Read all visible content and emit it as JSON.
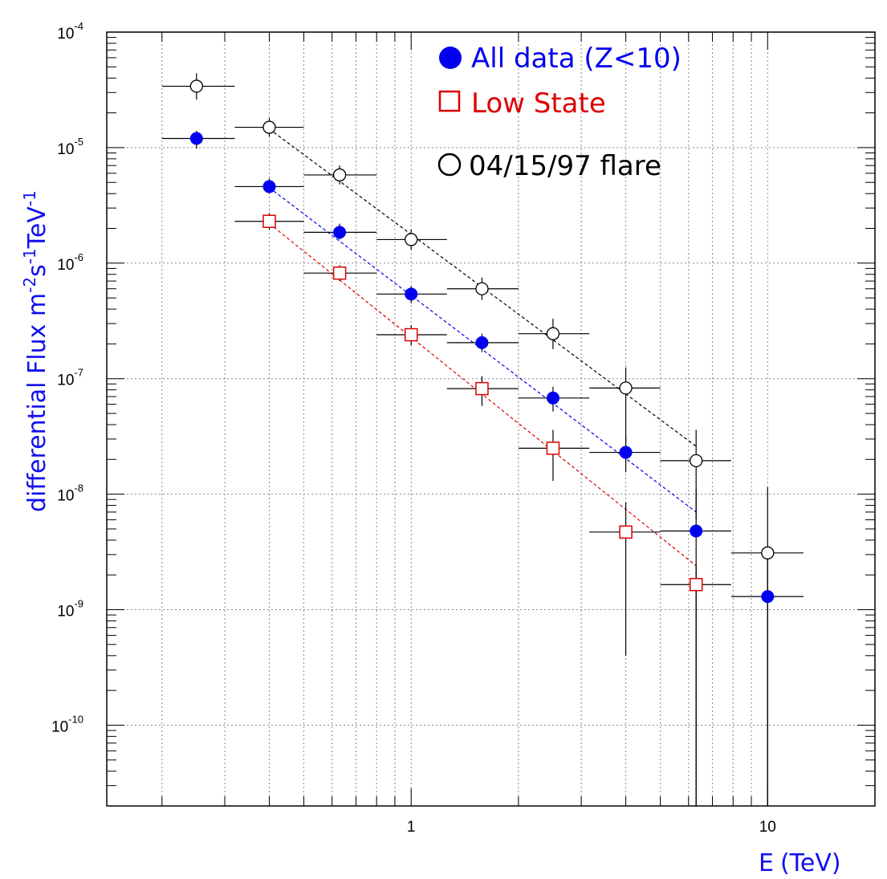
{
  "chart_data": {
    "type": "scatter",
    "x_scale": "log",
    "y_scale": "log",
    "xlim": [
      0.14,
      20
    ],
    "ylim": [
      2e-11,
      0.0001
    ],
    "grid": true,
    "legend_position": "top-right",
    "xlabel_main": "E",
    "xlabel_unit": "(TeV)",
    "ylabel_main": "differential Flux m",
    "ylabel_s": "s",
    "ylabel_tev": "TeV",
    "ylabel_exp1": "-2",
    "ylabel_exp2": "-1",
    "ylabel_exp3": "-1",
    "x_ticks": [
      {
        "value": 1,
        "label": "1"
      },
      {
        "value": 10,
        "label": "10"
      }
    ],
    "y_ticks": [
      {
        "value": 0.0001,
        "base": "10",
        "exp": "-4"
      },
      {
        "value": 1e-05,
        "base": "10",
        "exp": "-5"
      },
      {
        "value": 1e-06,
        "base": "10",
        "exp": "-6"
      },
      {
        "value": 1e-07,
        "base": "10",
        "exp": "-7"
      },
      {
        "value": 1e-08,
        "base": "10",
        "exp": "-8"
      },
      {
        "value": 1e-09,
        "base": "10",
        "exp": "-9"
      },
      {
        "value": 1e-10,
        "base": "10",
        "exp": "-10"
      }
    ],
    "series": [
      {
        "name": "04/15/97 flare",
        "marker": "open-circle",
        "color": "#000000",
        "points": [
          {
            "x": 0.25,
            "y": 3.4e-05,
            "xlo": 0.2,
            "xhi": 0.32,
            "ylo": 2.6e-05,
            "yhi": 4.4e-05
          },
          {
            "x": 0.4,
            "y": 1.5e-05,
            "xlo": 0.32,
            "xhi": 0.5,
            "ylo": 1.25e-05,
            "yhi": 1.8e-05
          },
          {
            "x": 0.63,
            "y": 5.8e-06,
            "xlo": 0.5,
            "xhi": 0.8,
            "ylo": 4.8e-06,
            "yhi": 7e-06
          },
          {
            "x": 1.0,
            "y": 1.6e-06,
            "xlo": 0.8,
            "xhi": 1.26,
            "ylo": 1.3e-06,
            "yhi": 1.95e-06
          },
          {
            "x": 1.58,
            "y": 6e-07,
            "xlo": 1.26,
            "xhi": 2.0,
            "ylo": 4.8e-07,
            "yhi": 7.5e-07
          },
          {
            "x": 2.5,
            "y": 2.45e-07,
            "xlo": 2.0,
            "xhi": 3.16,
            "ylo": 1.8e-07,
            "yhi": 3.3e-07
          },
          {
            "x": 4.0,
            "y": 8.3e-08,
            "xlo": 3.16,
            "xhi": 5.0,
            "ylo": 2.8e-08,
            "yhi": 1.25e-07
          },
          {
            "x": 6.3,
            "y": 1.95e-08,
            "xlo": 5.0,
            "xhi": 7.9,
            "ylo": 6e-09,
            "yhi": 3.6e-08
          },
          {
            "x": 10.0,
            "y": 3.1e-09,
            "xlo": 7.9,
            "xhi": 12.6,
            "ylo": 2e-11,
            "yhi": 1.15e-08
          }
        ],
        "fit": {
          "x": [
            0.4,
            6.3
          ],
          "y": [
            1.45e-05,
            2.6e-08
          ]
        }
      },
      {
        "name": "All data (Z<10)",
        "marker": "filled-circle",
        "color": "#0000ee",
        "points": [
          {
            "x": 0.25,
            "y": 1.2e-05,
            "xlo": 0.2,
            "xhi": 0.32,
            "ylo": 9.8e-06,
            "yhi": 1.4e-05
          },
          {
            "x": 0.4,
            "y": 4.6e-06,
            "xlo": 0.32,
            "xhi": 0.5,
            "ylo": 4e-06,
            "yhi": 5.4e-06
          },
          {
            "x": 0.63,
            "y": 1.85e-06,
            "xlo": 0.5,
            "xhi": 0.8,
            "ylo": 1.6e-06,
            "yhi": 2.2e-06
          },
          {
            "x": 1.0,
            "y": 5.4e-07,
            "xlo": 0.8,
            "xhi": 1.26,
            "ylo": 4.5e-07,
            "yhi": 6.3e-07
          },
          {
            "x": 1.58,
            "y": 2.05e-07,
            "xlo": 1.26,
            "xhi": 2.0,
            "ylo": 1.7e-07,
            "yhi": 2.45e-07
          },
          {
            "x": 2.5,
            "y": 6.8e-08,
            "xlo": 2.0,
            "xhi": 3.16,
            "ylo": 5.2e-08,
            "yhi": 8.5e-08
          },
          {
            "x": 4.0,
            "y": 2.3e-08,
            "xlo": 3.16,
            "xhi": 5.0,
            "ylo": 1.55e-08,
            "yhi": 3.2e-08
          },
          {
            "x": 6.3,
            "y": 4.8e-09,
            "xlo": 5.0,
            "xhi": 7.9,
            "ylo": 2e-11,
            "yhi": 1.1e-08
          },
          {
            "x": 10.0,
            "y": 1.3e-09,
            "xlo": 7.9,
            "xhi": 12.6,
            "ylo": 2e-11,
            "yhi": 3.2e-09
          }
        ],
        "fit": {
          "x": [
            0.4,
            6.3
          ],
          "y": [
            4.5e-06,
            7e-09
          ]
        }
      },
      {
        "name": "Low State",
        "marker": "open-square",
        "color": "#dd0000",
        "points": [
          {
            "x": 0.4,
            "y": 2.3e-06,
            "xlo": 0.32,
            "xhi": 0.5,
            "ylo": 1.95e-06,
            "yhi": 2.7e-06
          },
          {
            "x": 0.63,
            "y": 8.2e-07,
            "xlo": 0.5,
            "xhi": 0.8,
            "ylo": 7e-07,
            "yhi": 9.6e-07
          },
          {
            "x": 1.0,
            "y": 2.4e-07,
            "xlo": 0.8,
            "xhi": 1.26,
            "ylo": 1.95e-07,
            "yhi": 2.9e-07
          },
          {
            "x": 1.58,
            "y": 8.2e-08,
            "xlo": 1.26,
            "xhi": 2.0,
            "ylo": 5.8e-08,
            "yhi": 1.05e-07
          },
          {
            "x": 2.5,
            "y": 2.5e-08,
            "xlo": 2.0,
            "xhi": 3.16,
            "ylo": 1.3e-08,
            "yhi": 3.6e-08
          },
          {
            "x": 4.0,
            "y": 4.7e-09,
            "xlo": 3.16,
            "xhi": 5.0,
            "ylo": 4e-10,
            "yhi": 8.5e-09
          },
          {
            "x": 6.3,
            "y": 1.65e-09,
            "xlo": 5.0,
            "xhi": 7.9,
            "ylo": 2e-11,
            "yhi": 2.4e-09
          }
        ],
        "fit": {
          "x": [
            0.4,
            6.3
          ],
          "y": [
            2.2e-06,
            2.4e-09
          ]
        }
      }
    ],
    "legend": [
      {
        "label": "All data (Z<10)",
        "color": "#0000ee",
        "marker": "filled-circle"
      },
      {
        "label": "Low State",
        "color": "#dd0000",
        "marker": "open-square"
      },
      {
        "label": "04/15/97 flare",
        "color": "#000000",
        "marker": "open-circle"
      }
    ]
  }
}
